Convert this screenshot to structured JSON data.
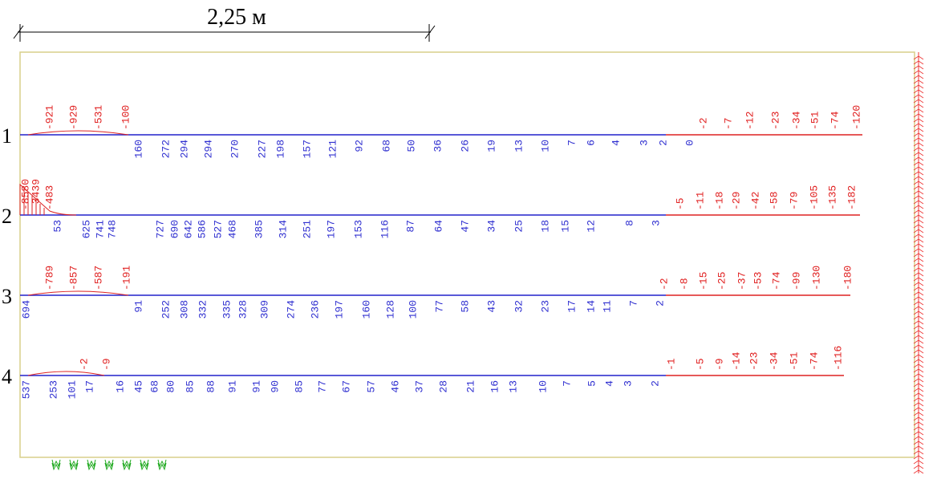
{
  "scale_label": "2,25 м",
  "rows": [
    {
      "label": "1",
      "above": [
        "-921",
        "-929",
        "-531",
        "-100",
        "-2",
        "-7",
        "-12",
        "-23",
        "-34",
        "-51",
        "-74",
        "-120"
      ],
      "below": [
        "160",
        "272",
        "294",
        "294",
        "270",
        "227",
        "198",
        "157",
        "121",
        "92",
        "68",
        "50",
        "36",
        "26",
        "19",
        "13",
        "10",
        "7",
        "6",
        "4",
        "3",
        "2",
        "0"
      ]
    },
    {
      "label": "2",
      "above": [
        "-8580",
        "-3439",
        "-483",
        "-5",
        "-11",
        "-18",
        "-29",
        "-42",
        "-58",
        "-79",
        "-105",
        "-135",
        "-182"
      ],
      "below": [
        "53",
        "625",
        "741",
        "748",
        "727",
        "690",
        "642",
        "586",
        "527",
        "468",
        "385",
        "314",
        "251",
        "197",
        "153",
        "116",
        "87",
        "64",
        "47",
        "34",
        "25",
        "18",
        "15",
        "12",
        "8",
        "3"
      ]
    },
    {
      "label": "3",
      "above": [
        "-789",
        "-857",
        "-587",
        "-191",
        "-2",
        "-8",
        "-15",
        "-25",
        "-37",
        "-53",
        "-74",
        "-99",
        "-130",
        "-180"
      ],
      "below": [
        "694",
        "91",
        "252",
        "308",
        "332",
        "335",
        "328",
        "309",
        "274",
        "236",
        "197",
        "160",
        "128",
        "100",
        "77",
        "58",
        "43",
        "32",
        "23",
        "17",
        "14",
        "11",
        "7",
        "2"
      ]
    },
    {
      "label": "4",
      "above": [
        "-2",
        "-9",
        "-1",
        "-5",
        "-9",
        "-14",
        "-23",
        "-34",
        "-51",
        "-74",
        "-116"
      ],
      "below": [
        "537",
        "253",
        "101",
        "17",
        "16",
        "45",
        "68",
        "80",
        "85",
        "88",
        "91",
        "91",
        "90",
        "85",
        "77",
        "67",
        "57",
        "46",
        "37",
        "28",
        "21",
        "16",
        "13",
        "10",
        "7",
        "5",
        "4",
        "3",
        "2"
      ]
    }
  ]
}
